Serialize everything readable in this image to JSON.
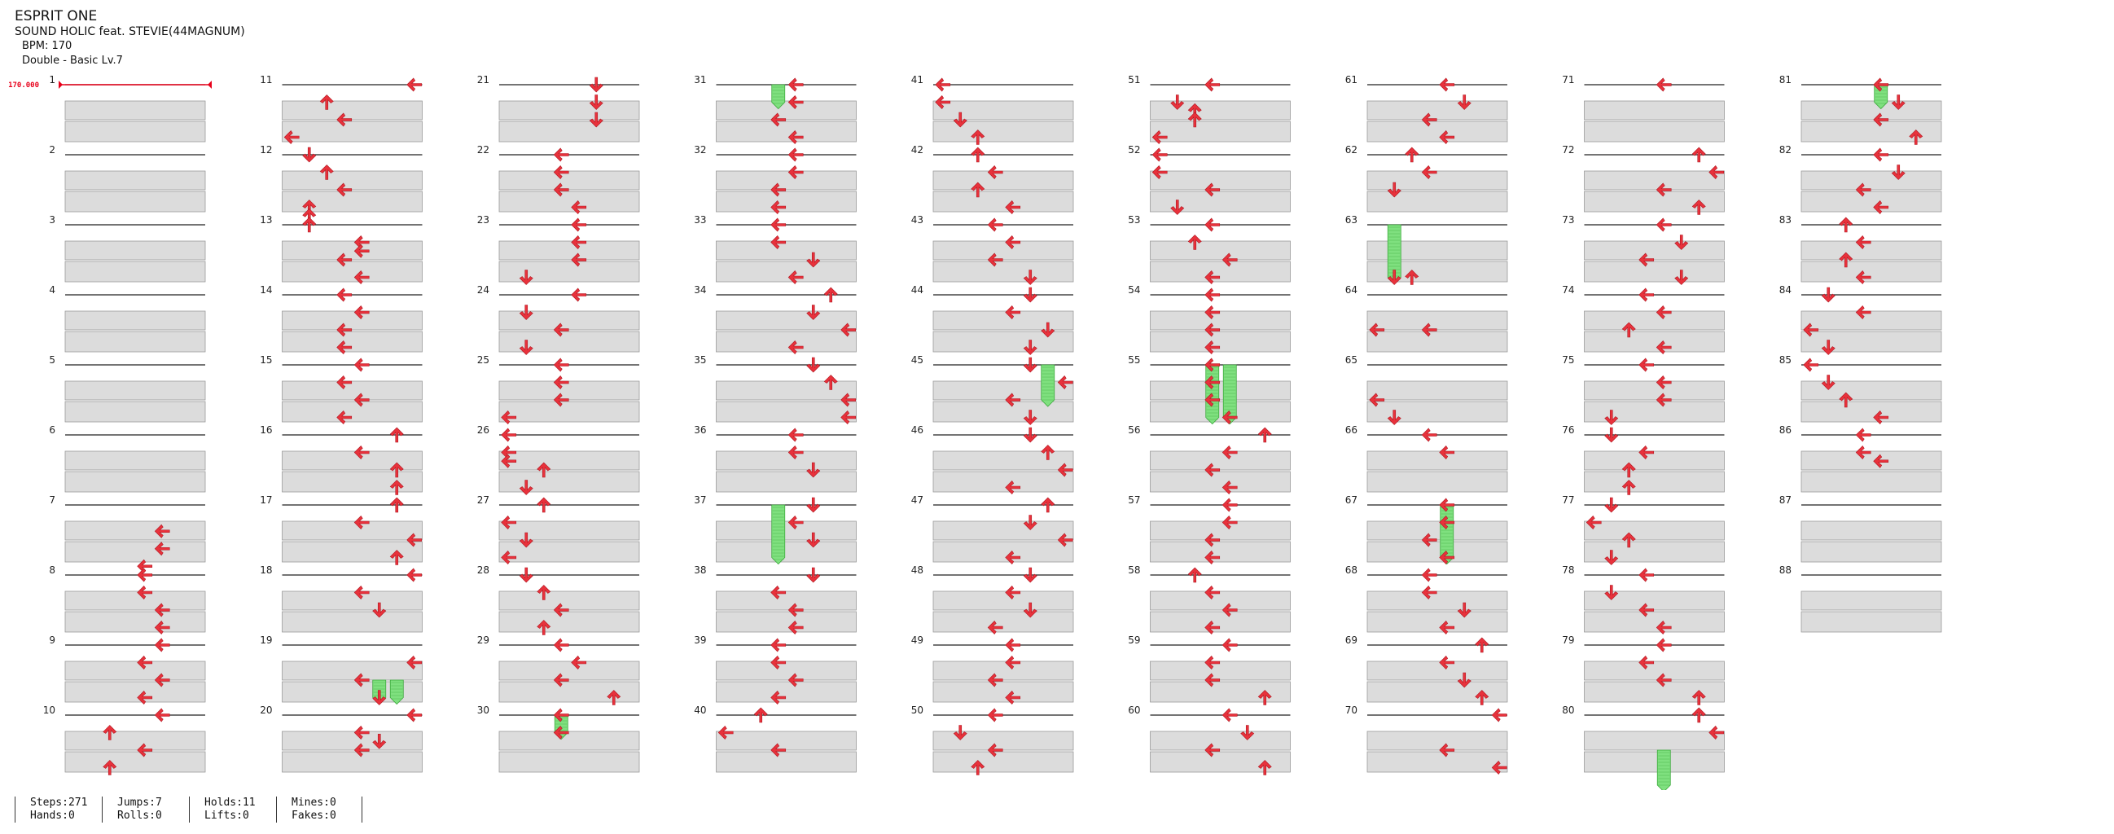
{
  "song": {
    "title": "ESPRIT ONE",
    "artist": "SOUND HOLIC feat. STEVIE(44MAGNUM)",
    "bpm_text": "BPM: 170",
    "chart_text": "Double - Basic  Lv.7"
  },
  "bpm_marker": {
    "label": "170.000",
    "measure": 1
  },
  "measures": [
    1,
    2,
    3,
    4,
    5,
    6,
    7,
    8,
    9,
    10,
    11,
    12,
    13,
    14,
    15,
    16,
    17,
    18,
    19,
    20,
    21,
    22,
    23,
    24,
    25,
    26,
    27,
    28,
    29,
    30,
    31,
    32,
    33,
    34,
    35,
    36,
    37,
    38,
    39,
    40,
    41,
    42,
    43,
    44,
    45,
    46,
    47,
    48,
    49,
    50,
    51,
    52,
    53,
    54,
    55,
    56,
    57,
    58,
    59,
    60,
    61,
    62,
    63,
    64,
    65,
    66,
    67,
    68,
    69,
    70,
    71,
    72,
    73,
    74,
    75,
    76,
    77,
    78,
    79,
    80,
    81,
    82,
    83,
    84,
    85,
    86,
    87,
    88
  ],
  "notes": {
    "1": [],
    "2": [],
    "3": [],
    "4": [],
    "5": [],
    "6": [],
    "7": [
      [
        0.75,
        5,
        "L"
      ],
      [
        1.25,
        5,
        "L"
      ],
      [
        1.75,
        4,
        "L"
      ]
    ],
    "8": [
      [
        0,
        4,
        "L"
      ],
      [
        0.5,
        4,
        "L"
      ],
      [
        1.0,
        5,
        "L"
      ],
      [
        1.5,
        5,
        "L"
      ]
    ],
    "9": [
      [
        0,
        5,
        "L"
      ],
      [
        0.5,
        4,
        "L"
      ],
      [
        1.0,
        5,
        "L"
      ],
      [
        1.5,
        4,
        "L"
      ]
    ],
    "10": [
      [
        0,
        5,
        "L"
      ],
      [
        0.5,
        2,
        "U"
      ],
      [
        1.0,
        4,
        "L"
      ],
      [
        1.5,
        2,
        "U"
      ]
    ],
    "11": [
      [
        0,
        7,
        "L"
      ],
      [
        0.5,
        2,
        "U"
      ],
      [
        1.0,
        3,
        "L"
      ],
      [
        1.5,
        0,
        "L"
      ]
    ],
    "12": [
      [
        0,
        1,
        "D"
      ],
      [
        0.5,
        2,
        "U"
      ],
      [
        1.0,
        3,
        "L"
      ],
      [
        1.5,
        1,
        "U"
      ],
      [
        1.75,
        1,
        "U"
      ]
    ],
    "13": [
      [
        0,
        1,
        "U"
      ],
      [
        0.5,
        4,
        "L"
      ],
      [
        0.75,
        4,
        "L"
      ],
      [
        1.0,
        3,
        "L"
      ],
      [
        1.5,
        4,
        "L"
      ]
    ],
    "14": [
      [
        0,
        3,
        "L"
      ],
      [
        0.5,
        4,
        "L"
      ],
      [
        1.0,
        3,
        "L"
      ],
      [
        1.5,
        3,
        "L"
      ]
    ],
    "15": [
      [
        0,
        4,
        "L"
      ],
      [
        0.5,
        3,
        "L"
      ],
      [
        1.0,
        4,
        "L"
      ],
      [
        1.5,
        3,
        "L"
      ]
    ],
    "16": [
      [
        0,
        6,
        "U"
      ],
      [
        0.5,
        4,
        "L"
      ],
      [
        1.0,
        6,
        "U"
      ],
      [
        1.5,
        6,
        "U"
      ]
    ],
    "17": [
      [
        0,
        6,
        "U"
      ],
      [
        0.5,
        4,
        "L"
      ],
      [
        1.0,
        7,
        "L"
      ],
      [
        1.5,
        6,
        "U"
      ]
    ],
    "18": [
      [
        0,
        7,
        "L"
      ],
      [
        0.5,
        4,
        "L"
      ],
      [
        1.0,
        5,
        "D"
      ]
    ],
    "19": [
      [
        0.5,
        7,
        "L"
      ],
      [
        1.0,
        4,
        "L"
      ],
      [
        1.5,
        5,
        "D"
      ]
    ],
    "20": [
      [
        0,
        7,
        "L"
      ],
      [
        0.5,
        4,
        "L"
      ],
      [
        0.75,
        5,
        "D"
      ],
      [
        1.0,
        4,
        "L"
      ]
    ],
    "21": [
      [
        0,
        5,
        "D"
      ],
      [
        0.5,
        5,
        "D"
      ],
      [
        1.0,
        5,
        "D"
      ]
    ],
    "22": [
      [
        0,
        3,
        "L"
      ],
      [
        0.5,
        3,
        "L"
      ],
      [
        1.0,
        3,
        "L"
      ],
      [
        1.5,
        4,
        "L"
      ]
    ],
    "23": [
      [
        0,
        4,
        "L"
      ],
      [
        0.5,
        4,
        "L"
      ],
      [
        1.0,
        4,
        "L"
      ],
      [
        1.5,
        1,
        "D"
      ]
    ],
    "24": [
      [
        0,
        4,
        "L"
      ],
      [
        0.5,
        1,
        "D"
      ],
      [
        1.0,
        3,
        "L"
      ],
      [
        1.5,
        1,
        "D"
      ]
    ],
    "25": [
      [
        0,
        3,
        "L"
      ],
      [
        0.5,
        3,
        "L"
      ],
      [
        1.0,
        3,
        "L"
      ],
      [
        1.5,
        0,
        "L"
      ]
    ],
    "26": [
      [
        0,
        0,
        "L"
      ],
      [
        0.5,
        0,
        "L"
      ],
      [
        0.75,
        0,
        "L"
      ],
      [
        1.0,
        2,
        "U"
      ],
      [
        1.5,
        1,
        "D"
      ]
    ],
    "27": [
      [
        0,
        2,
        "U"
      ],
      [
        0.5,
        0,
        "L"
      ],
      [
        1.0,
        1,
        "D"
      ],
      [
        1.5,
        0,
        "L"
      ]
    ],
    "28": [
      [
        0,
        1,
        "D"
      ],
      [
        0.5,
        2,
        "U"
      ],
      [
        1.0,
        3,
        "L"
      ],
      [
        1.5,
        2,
        "U"
      ]
    ],
    "29": [
      [
        0,
        3,
        "L"
      ],
      [
        0.5,
        4,
        "L"
      ],
      [
        1.0,
        3,
        "L"
      ],
      [
        1.5,
        6,
        "U"
      ]
    ],
    "30": [
      [
        0,
        3,
        "L"
      ],
      [
        0.5,
        3,
        "L"
      ]
    ],
    "31": [
      [
        0,
        4,
        "L"
      ],
      [
        0.5,
        4,
        "L"
      ],
      [
        1.0,
        3,
        "L"
      ],
      [
        1.5,
        4,
        "L"
      ]
    ],
    "32": [
      [
        0,
        4,
        "L"
      ],
      [
        0.5,
        4,
        "L"
      ],
      [
        1.0,
        3,
        "L"
      ],
      [
        1.5,
        3,
        "L"
      ]
    ],
    "33": [
      [
        0,
        3,
        "L"
      ],
      [
        0.5,
        3,
        "L"
      ],
      [
        1.0,
        5,
        "D"
      ],
      [
        1.5,
        4,
        "L"
      ]
    ],
    "34": [
      [
        0,
        6,
        "U"
      ],
      [
        0.5,
        5,
        "D"
      ],
      [
        1.0,
        7,
        "L"
      ],
      [
        1.5,
        4,
        "L"
      ]
    ],
    "35": [
      [
        0,
        5,
        "D"
      ],
      [
        0.5,
        6,
        "U"
      ],
      [
        1.0,
        7,
        "L"
      ],
      [
        1.5,
        7,
        "L"
      ]
    ],
    "36": [
      [
        0,
        4,
        "L"
      ],
      [
        0.5,
        4,
        "L"
      ],
      [
        1.0,
        5,
        "D"
      ]
    ],
    "37": [
      [
        0,
        5,
        "D"
      ],
      [
        0.5,
        4,
        "L"
      ],
      [
        1.0,
        5,
        "D"
      ]
    ],
    "38": [
      [
        0,
        5,
        "D"
      ],
      [
        0.5,
        3,
        "L"
      ],
      [
        1.0,
        4,
        "L"
      ],
      [
        1.5,
        4,
        "L"
      ]
    ],
    "39": [
      [
        0,
        3,
        "L"
      ],
      [
        0.5,
        3,
        "L"
      ],
      [
        1.0,
        4,
        "L"
      ],
      [
        1.5,
        3,
        "L"
      ]
    ],
    "40": [
      [
        0,
        2,
        "U"
      ],
      [
        0.5,
        0,
        "L"
      ],
      [
        1.0,
        3,
        "L"
      ]
    ],
    "41": [
      [
        0,
        0,
        "L"
      ],
      [
        0.5,
        0,
        "L"
      ],
      [
        1.0,
        1,
        "D"
      ],
      [
        1.5,
        2,
        "U"
      ]
    ],
    "42": [
      [
        0,
        2,
        "U"
      ],
      [
        0.5,
        3,
        "L"
      ],
      [
        1.0,
        2,
        "U"
      ],
      [
        1.5,
        4,
        "L"
      ]
    ],
    "43": [
      [
        0,
        3,
        "L"
      ],
      [
        0.5,
        4,
        "L"
      ],
      [
        1.0,
        3,
        "L"
      ],
      [
        1.5,
        5,
        "D"
      ]
    ],
    "44": [
      [
        0,
        5,
        "D"
      ],
      [
        0.5,
        4,
        "L"
      ],
      [
        1.0,
        6,
        "D"
      ],
      [
        1.5,
        5,
        "D"
      ]
    ],
    "45": [
      [
        0,
        5,
        "D"
      ],
      [
        0.5,
        7,
        "L"
      ],
      [
        1.0,
        4,
        "L"
      ],
      [
        1.5,
        5,
        "D"
      ]
    ],
    "46": [
      [
        0,
        5,
        "D"
      ],
      [
        0.5,
        6,
        "U"
      ],
      [
        1.0,
        7,
        "L"
      ],
      [
        1.5,
        4,
        "L"
      ]
    ],
    "47": [
      [
        0,
        6,
        "U"
      ],
      [
        0.5,
        5,
        "D"
      ],
      [
        1.0,
        7,
        "L"
      ],
      [
        1.5,
        4,
        "L"
      ]
    ],
    "48": [
      [
        0,
        5,
        "D"
      ],
      [
        0.5,
        4,
        "L"
      ],
      [
        1.0,
        5,
        "D"
      ],
      [
        1.5,
        3,
        "L"
      ]
    ],
    "49": [
      [
        0,
        4,
        "L"
      ],
      [
        0.5,
        4,
        "L"
      ],
      [
        1.0,
        3,
        "L"
      ],
      [
        1.5,
        4,
        "L"
      ]
    ],
    "50": [
      [
        0,
        3,
        "L"
      ],
      [
        0.5,
        1,
        "D"
      ],
      [
        1.0,
        3,
        "L"
      ],
      [
        1.5,
        2,
        "U"
      ]
    ],
    "51": [
      [
        0,
        3,
        "L"
      ],
      [
        0.5,
        1,
        "D"
      ],
      [
        0.75,
        2,
        "U"
      ],
      [
        1.0,
        2,
        "U"
      ],
      [
        1.5,
        0,
        "L"
      ]
    ],
    "52": [
      [
        0,
        0,
        "L"
      ],
      [
        0.5,
        0,
        "L"
      ],
      [
        1.0,
        3,
        "L"
      ],
      [
        1.5,
        1,
        "D"
      ]
    ],
    "53": [
      [
        0,
        3,
        "L"
      ],
      [
        0.5,
        2,
        "U"
      ],
      [
        1.0,
        4,
        "L"
      ],
      [
        1.5,
        3,
        "L"
      ]
    ],
    "54": [
      [
        0,
        3,
        "L"
      ],
      [
        0.5,
        3,
        "L"
      ],
      [
        1.0,
        3,
        "L"
      ],
      [
        1.5,
        3,
        "L"
      ]
    ],
    "55": [
      [
        0,
        3,
        "L"
      ],
      [
        0.5,
        3,
        "L"
      ],
      [
        1.0,
        3,
        "L"
      ],
      [
        1.5,
        4,
        "L"
      ]
    ],
    "56": [
      [
        0,
        6,
        "U"
      ],
      [
        0.5,
        4,
        "L"
      ],
      [
        1.0,
        3,
        "L"
      ],
      [
        1.5,
        4,
        "L"
      ]
    ],
    "57": [
      [
        0,
        4,
        "L"
      ],
      [
        0.5,
        4,
        "L"
      ],
      [
        1.0,
        3,
        "L"
      ],
      [
        1.5,
        3,
        "L"
      ]
    ],
    "58": [
      [
        0,
        2,
        "U"
      ],
      [
        0.5,
        3,
        "L"
      ],
      [
        1.0,
        4,
        "L"
      ],
      [
        1.5,
        3,
        "L"
      ]
    ],
    "59": [
      [
        0,
        4,
        "L"
      ],
      [
        0.5,
        3,
        "L"
      ],
      [
        1.0,
        3,
        "L"
      ],
      [
        1.5,
        6,
        "U"
      ]
    ],
    "60": [
      [
        0,
        4,
        "L"
      ],
      [
        0.5,
        5,
        "D"
      ],
      [
        1.0,
        3,
        "L"
      ],
      [
        1.5,
        6,
        "U"
      ]
    ],
    "61": [
      [
        0,
        4,
        "L"
      ],
      [
        0.5,
        5,
        "D"
      ],
      [
        1.0,
        3,
        "L"
      ],
      [
        1.5,
        4,
        "L"
      ]
    ],
    "62": [
      [
        0,
        2,
        "U"
      ],
      [
        0.5,
        3,
        "L"
      ],
      [
        1.0,
        1,
        "D"
      ]
    ],
    "63": [
      [
        1.5,
        1,
        "D"
      ],
      [
        1.5,
        2,
        "U"
      ]
    ],
    "64": [
      [
        1.0,
        0,
        "L"
      ],
      [
        1.0,
        3,
        "L"
      ]
    ],
    "65": [
      [
        1.0,
        0,
        "L"
      ],
      [
        1.5,
        1,
        "D"
      ]
    ],
    "66": [
      [
        0,
        3,
        "L"
      ],
      [
        0.5,
        4,
        "L"
      ]
    ],
    "67": [
      [
        0,
        4,
        "L"
      ],
      [
        0.5,
        4,
        "L"
      ],
      [
        1.0,
        3,
        "L"
      ],
      [
        1.5,
        4,
        "L"
      ]
    ],
    "68": [
      [
        0,
        3,
        "L"
      ],
      [
        0.5,
        3,
        "L"
      ],
      [
        1.0,
        5,
        "D"
      ],
      [
        1.5,
        4,
        "L"
      ]
    ],
    "69": [
      [
        0,
        6,
        "U"
      ],
      [
        0.5,
        4,
        "L"
      ],
      [
        1.0,
        5,
        "D"
      ],
      [
        1.5,
        6,
        "U"
      ]
    ],
    "70": [
      [
        0,
        7,
        "L"
      ],
      [
        1.0,
        4,
        "L"
      ],
      [
        1.5,
        7,
        "L"
      ]
    ],
    "71": [
      [
        0,
        4,
        "L"
      ]
    ],
    "72": [
      [
        0,
        6,
        "U"
      ],
      [
        0.5,
        7,
        "L"
      ],
      [
        1.0,
        4,
        "L"
      ],
      [
        1.5,
        6,
        "U"
      ]
    ],
    "73": [
      [
        0,
        4,
        "L"
      ],
      [
        0.5,
        5,
        "D"
      ],
      [
        1.0,
        3,
        "L"
      ],
      [
        1.5,
        5,
        "D"
      ]
    ],
    "74": [
      [
        0,
        3,
        "L"
      ],
      [
        0.5,
        4,
        "L"
      ],
      [
        1.0,
        2,
        "U"
      ],
      [
        1.5,
        4,
        "L"
      ]
    ],
    "75": [
      [
        0,
        3,
        "L"
      ],
      [
        0.5,
        4,
        "L"
      ],
      [
        1.0,
        4,
        "L"
      ],
      [
        1.5,
        1,
        "D"
      ]
    ],
    "76": [
      [
        0,
        1,
        "D"
      ],
      [
        0.5,
        3,
        "L"
      ],
      [
        1.0,
        2,
        "U"
      ],
      [
        1.5,
        2,
        "U"
      ]
    ],
    "77": [
      [
        0,
        1,
        "D"
      ],
      [
        0.5,
        0,
        "L"
      ],
      [
        1.0,
        2,
        "U"
      ],
      [
        1.5,
        1,
        "D"
      ]
    ],
    "78": [
      [
        0,
        3,
        "L"
      ],
      [
        0.5,
        1,
        "D"
      ],
      [
        1.0,
        3,
        "L"
      ],
      [
        1.5,
        4,
        "L"
      ]
    ],
    "79": [
      [
        0,
        4,
        "L"
      ],
      [
        0.5,
        3,
        "L"
      ],
      [
        1.0,
        4,
        "L"
      ],
      [
        1.5,
        6,
        "U"
      ]
    ],
    "80": [
      [
        0,
        6,
        "U"
      ],
      [
        0.5,
        7,
        "L"
      ]
    ],
    "81": [
      [
        0,
        4,
        "L"
      ],
      [
        0.5,
        5,
        "D"
      ],
      [
        1.0,
        4,
        "L"
      ],
      [
        1.5,
        6,
        "U"
      ]
    ],
    "82": [
      [
        0,
        4,
        "L"
      ],
      [
        0.5,
        5,
        "D"
      ],
      [
        1.0,
        3,
        "L"
      ],
      [
        1.5,
        4,
        "L"
      ]
    ],
    "83": [
      [
        0,
        2,
        "U"
      ],
      [
        0.5,
        3,
        "L"
      ],
      [
        1.0,
        2,
        "U"
      ],
      [
        1.5,
        3,
        "L"
      ]
    ],
    "84": [
      [
        0,
        1,
        "D"
      ],
      [
        0.5,
        3,
        "L"
      ],
      [
        1.0,
        0,
        "L"
      ],
      [
        1.5,
        1,
        "D"
      ]
    ],
    "85": [
      [
        0,
        0,
        "L"
      ],
      [
        0.5,
        1,
        "D"
      ],
      [
        1.0,
        2,
        "U"
      ],
      [
        1.5,
        4,
        "L"
      ]
    ],
    "86": [
      [
        0,
        3,
        "L"
      ],
      [
        0.5,
        3,
        "L"
      ],
      [
        0.75,
        4,
        "L"
      ]
    ],
    "87": [],
    "88": []
  },
  "holds": {
    "19": [
      [
        1.0,
        5,
        1.5
      ],
      [
        1.0,
        6,
        1.5
      ]
    ],
    "30": [
      [
        0,
        3,
        0.5
      ]
    ],
    "31": [
      [
        0,
        3,
        0.5
      ]
    ],
    "37": [
      [
        0,
        3,
        1.5
      ]
    ],
    "45": [
      [
        0,
        6,
        1.0
      ]
    ],
    "55": [
      [
        0,
        3,
        1.5
      ],
      [
        0,
        4,
        1.5
      ]
    ],
    "63": [
      [
        0,
        1,
        1.5
      ]
    ],
    "67": [
      [
        0,
        4,
        1.5
      ]
    ],
    "80": [
      [
        1.0,
        4,
        2.0
      ]
    ],
    "81": [
      [
        0,
        4,
        0.5
      ]
    ]
  },
  "stats": [
    {
      "a": "Steps:271",
      "b": "Hands:0"
    },
    {
      "a": "Jumps:7",
      "b": "Rolls:0"
    },
    {
      "a": "Holds:11",
      "b": "Lifts:0"
    },
    {
      "a": "Mines:0",
      "b": "Fakes:0"
    }
  ],
  "colors": {
    "arrow": "#e8323c",
    "hold": "#7fe07f",
    "band": "#dcdcdc",
    "bpm": "#e8001a"
  }
}
